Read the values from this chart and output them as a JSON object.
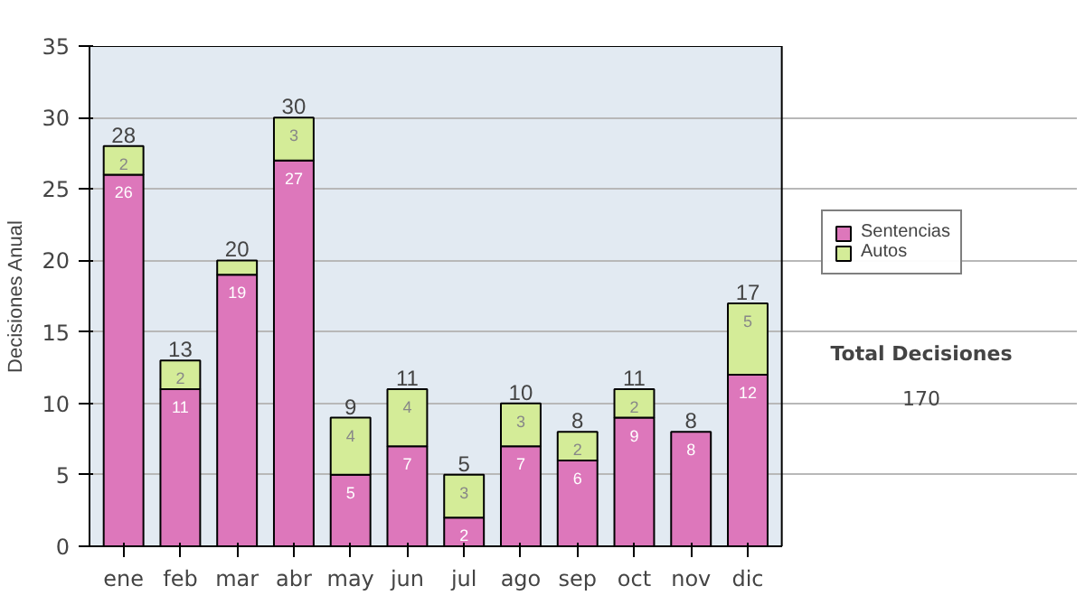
{
  "chart_data": {
    "type": "bar",
    "stacked": true,
    "ylabel": "Decisiones Anual",
    "categories": [
      "ene",
      "feb",
      "mar",
      "abr",
      "may",
      "jun",
      "jul",
      "ago",
      "sep",
      "oct",
      "nov",
      "dic"
    ],
    "series": [
      {
        "name": "Sentencias",
        "color": "#dd77bb",
        "values": [
          26,
          11,
          19,
          27,
          5,
          7,
          2,
          7,
          6,
          9,
          8,
          12
        ],
        "value_labels": [
          "26",
          "11",
          "19",
          "27",
          "5",
          "7",
          "2",
          "7",
          "6",
          "9",
          "8",
          "12"
        ]
      },
      {
        "name": "Autos",
        "color": "#d4ec98",
        "values": [
          2,
          2,
          1,
          3,
          4,
          4,
          3,
          3,
          2,
          2,
          0,
          5
        ],
        "value_labels": [
          "2",
          "2",
          null,
          "3",
          "4",
          "4",
          "3",
          "3",
          "2",
          "2",
          null,
          "5"
        ]
      }
    ],
    "totals": [
      "28",
      "13",
      "20",
      "30",
      "9",
      "11",
      "5",
      "10",
      "8",
      "11",
      "8",
      "17"
    ],
    "ylim": [
      0,
      35
    ],
    "yticks": [
      0,
      5,
      10,
      15,
      20,
      25,
      30,
      35
    ],
    "grid": "y",
    "legend": "right",
    "annotations": [
      "Total Decisiones",
      "170"
    ]
  }
}
